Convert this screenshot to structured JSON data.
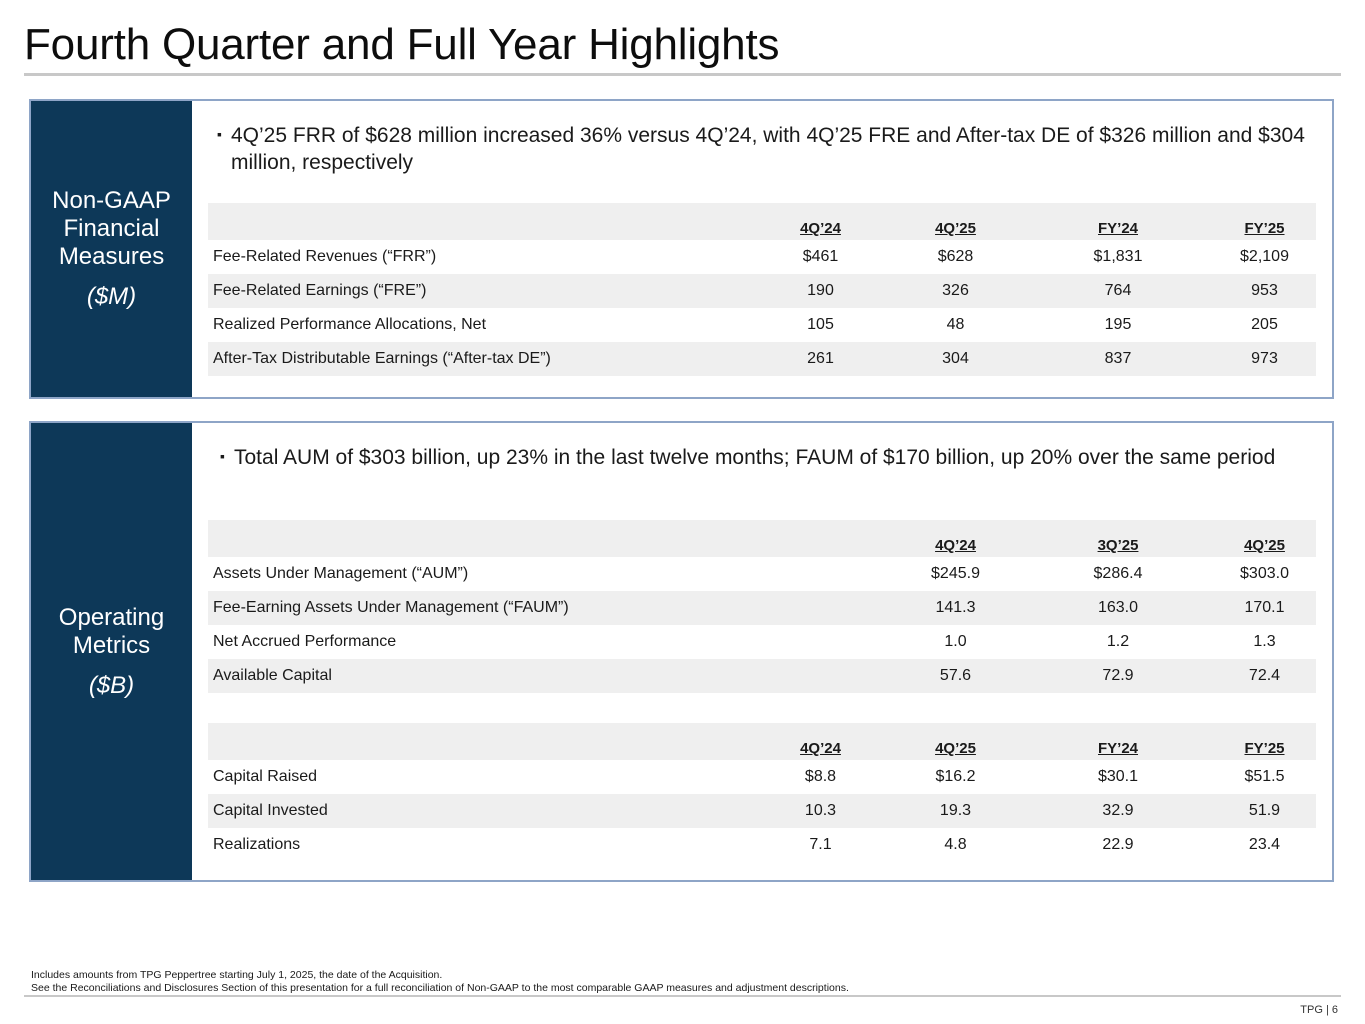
{
  "page": {
    "title": "Fourth Quarter and Full Year Highlights",
    "page_label": "TPG | 6",
    "footnotes": [
      "Includes amounts from TPG Peppertree starting July 1, 2025, the date of the Acquisition.",
      "See the Reconciliations and Disclosures Section of this presentation for a full reconciliation of Non-GAAP to the most comparable GAAP measures and adjustment descriptions."
    ]
  },
  "non_gaap": {
    "label_lines": [
      "Non-GAAP",
      "Financial",
      "Measures"
    ],
    "unit": "($M)",
    "bullet": "4Q’25 FRR of $628 million increased 36% versus 4Q’24, with 4Q’25 FRE and After-tax DE of $326 million and $304 million, respectively",
    "table": {
      "columns": [
        "4Q’24",
        "4Q’25",
        "FY’24",
        "FY’25"
      ],
      "rows": [
        {
          "name": "Fee-Related Revenues (“FRR”)",
          "values": [
            "$461",
            "$628",
            "$1,831",
            "$2,109"
          ]
        },
        {
          "name": "Fee-Related Earnings (“FRE”)",
          "values": [
            "190",
            "326",
            "764",
            "953"
          ]
        },
        {
          "name": "Realized Performance Allocations, Net",
          "values": [
            "105",
            "48",
            "195",
            "205"
          ]
        },
        {
          "name": "After-Tax Distributable Earnings (“After-tax DE”)",
          "values": [
            "261",
            "304",
            "837",
            "973"
          ]
        }
      ]
    }
  },
  "operating": {
    "label_lines": [
      "Operating",
      "Metrics"
    ],
    "unit": "($B)",
    "bullet": "Total AUM of $303 billion, up 23% in the last twelve months; FAUM of $170 billion, up 20% over the same period",
    "table1": {
      "columns": [
        "",
        "4Q’24",
        "3Q’25",
        "4Q’25"
      ],
      "rows": [
        {
          "name": "Assets Under Management (“AUM”)",
          "values": [
            "",
            "$245.9",
            "$286.4",
            "$303.0"
          ]
        },
        {
          "name": "Fee-Earning Assets Under Management (“FAUM”)",
          "values": [
            "",
            "141.3",
            "163.0",
            "170.1"
          ]
        },
        {
          "name": "Net Accrued Performance",
          "values": [
            "",
            "1.0",
            "1.2",
            "1.3"
          ]
        },
        {
          "name": "Available Capital",
          "values": [
            "",
            "57.6",
            "72.9",
            "72.4"
          ]
        }
      ]
    },
    "table2": {
      "columns": [
        "4Q’24",
        "4Q’25",
        "FY’24",
        "FY’25"
      ],
      "rows": [
        {
          "name": "Capital Raised",
          "values": [
            "$8.8",
            "$16.2",
            "$30.1",
            "$51.5"
          ]
        },
        {
          "name": "Capital Invested",
          "values": [
            "10.3",
            "19.3",
            "32.9",
            "51.9"
          ]
        },
        {
          "name": "Realizations",
          "values": [
            "7.1",
            "4.8",
            "22.9",
            "23.4"
          ]
        }
      ]
    }
  }
}
